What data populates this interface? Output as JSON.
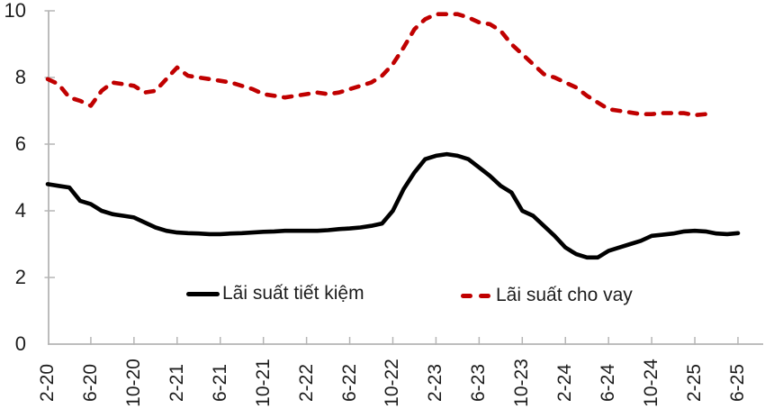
{
  "chart_data": {
    "type": "line",
    "title": "",
    "xlabel": "",
    "ylabel": "",
    "ylim": [
      0,
      10
    ],
    "y_ticks": [
      0,
      2,
      4,
      6,
      8,
      10
    ],
    "grid": false,
    "legend_position": "inside-bottom",
    "x_tick_labels": [
      "2-20",
      "6-20",
      "10-20",
      "2-21",
      "6-21",
      "10-21",
      "2-22",
      "6-22",
      "10-22",
      "2-23",
      "6-23",
      "10-23",
      "2-24",
      "6-24",
      "10-24",
      "2-25",
      "6-25"
    ],
    "x_label_every_n_points": 4,
    "categories": [
      "2-20",
      "3-20",
      "4-20",
      "5-20",
      "6-20",
      "7-20",
      "8-20",
      "9-20",
      "10-20",
      "11-20",
      "12-20",
      "1-21",
      "2-21",
      "3-21",
      "4-21",
      "5-21",
      "6-21",
      "7-21",
      "8-21",
      "9-21",
      "10-21",
      "11-21",
      "12-21",
      "1-22",
      "2-22",
      "3-22",
      "4-22",
      "5-22",
      "6-22",
      "7-22",
      "8-22",
      "9-22",
      "10-22",
      "11-22",
      "12-22",
      "1-23",
      "2-23",
      "3-23",
      "4-23",
      "5-23",
      "6-23",
      "7-23",
      "8-23",
      "9-23",
      "10-23",
      "11-23",
      "12-23",
      "1-24",
      "2-24",
      "3-24",
      "4-24",
      "5-24",
      "6-24",
      "7-24",
      "8-24",
      "9-24",
      "10-24",
      "11-24",
      "12-24",
      "1-25",
      "2-25",
      "3-25",
      "4-25",
      "5-25",
      "6-25"
    ],
    "series": [
      {
        "name": "Lãi suất tiết kiệm",
        "color": "#000000",
        "line_style": "solid",
        "values": [
          4.8,
          4.75,
          4.7,
          4.3,
          4.2,
          4.0,
          3.9,
          3.85,
          3.8,
          3.65,
          3.5,
          3.4,
          3.35,
          3.33,
          3.32,
          3.3,
          3.3,
          3.32,
          3.33,
          3.35,
          3.37,
          3.38,
          3.4,
          3.4,
          3.4,
          3.4,
          3.42,
          3.45,
          3.47,
          3.5,
          3.55,
          3.62,
          4.0,
          4.65,
          5.15,
          5.55,
          5.65,
          5.7,
          5.65,
          5.55,
          5.3,
          5.05,
          4.75,
          4.55,
          4.0,
          3.85,
          3.55,
          3.25,
          2.9,
          2.7,
          2.6,
          2.6,
          2.8,
          2.9,
          3.0,
          3.1,
          3.25,
          3.28,
          3.32,
          3.38,
          3.4,
          3.38,
          3.32,
          3.3,
          3.33
        ]
      },
      {
        "name": "Lãi suất cho vay",
        "color": "#c00000",
        "line_style": "dashed",
        "values": [
          7.95,
          7.8,
          7.4,
          7.3,
          7.15,
          7.6,
          7.85,
          7.8,
          7.75,
          7.55,
          7.6,
          7.95,
          8.3,
          8.05,
          8.0,
          7.95,
          7.9,
          7.85,
          7.75,
          7.65,
          7.5,
          7.45,
          7.4,
          7.45,
          7.5,
          7.55,
          7.5,
          7.55,
          7.65,
          7.75,
          7.85,
          8.05,
          8.4,
          8.9,
          9.45,
          9.75,
          9.9,
          9.9,
          9.9,
          9.8,
          9.65,
          9.6,
          9.4,
          9.0,
          8.7,
          8.4,
          8.1,
          8.0,
          7.85,
          7.7,
          7.45,
          7.25,
          7.05,
          7.0,
          6.95,
          6.9,
          6.9,
          6.93,
          6.93,
          6.93,
          6.87,
          6.9,
          null,
          null,
          null
        ]
      }
    ]
  },
  "colors": {
    "axis": "#b5b5b5",
    "tick_text": "#1d1d1d",
    "savings_line": "#000000",
    "lending_line": "#c00000",
    "background": "#ffffff"
  }
}
